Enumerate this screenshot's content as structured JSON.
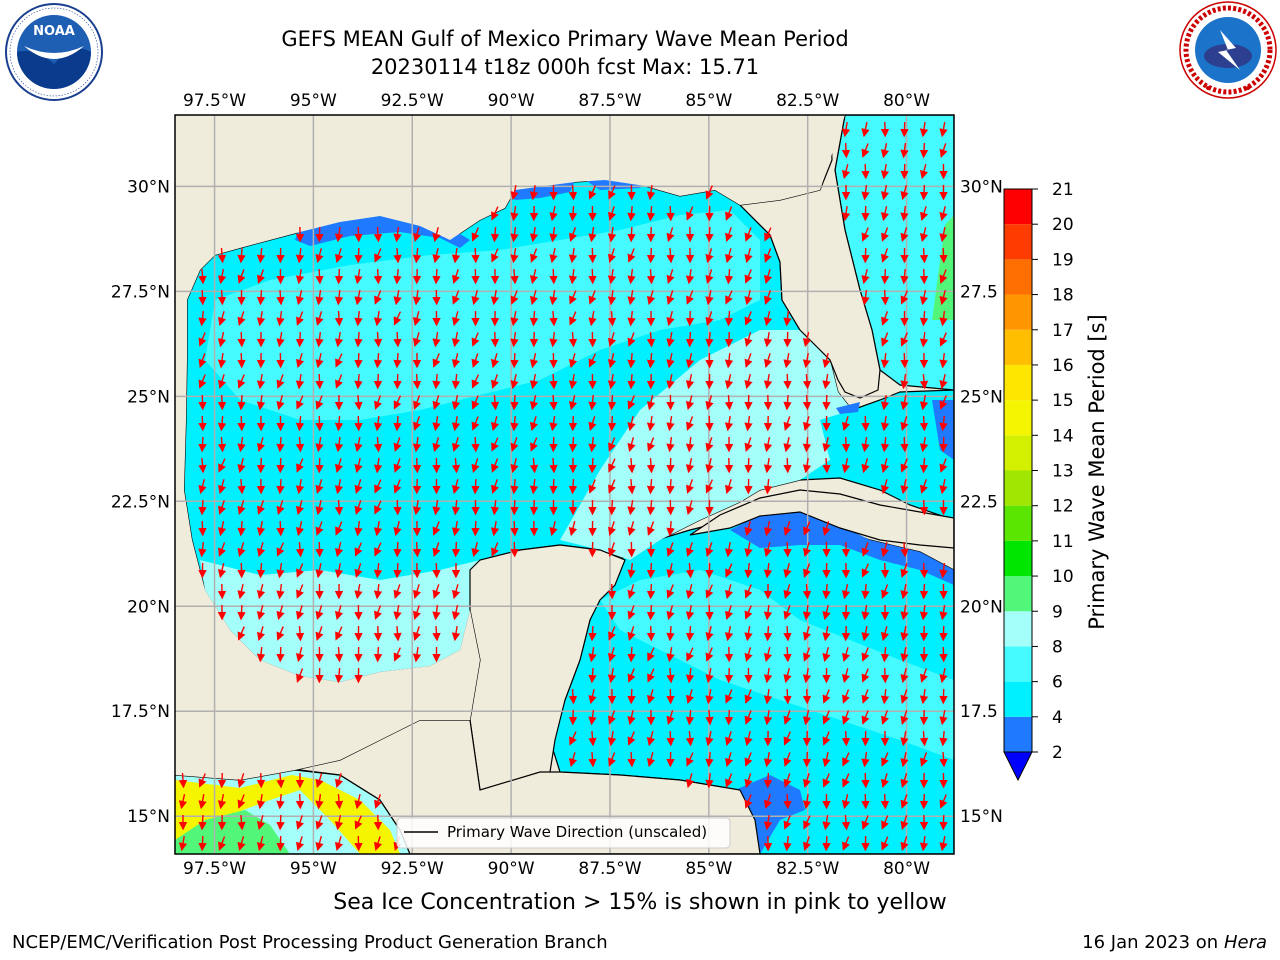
{
  "title": {
    "line1": "GEFS MEAN Gulf of Mexico Primary Wave Mean Period",
    "line2": "20230114 t18z 000h fcst   Max: 15.71"
  },
  "map": {
    "lon_labels": [
      "97.5°W",
      "95°W",
      "92.5°W",
      "90°W",
      "87.5°W",
      "85°W",
      "82.5°W",
      "80°W"
    ],
    "lat_labels_left": [
      "30°N",
      "27.5°N",
      "25°N",
      "22.5°N",
      "20°N",
      "17.5°N",
      "15°N"
    ],
    "lat_labels_right": [
      "30°N",
      "27.5",
      "25°N",
      "22.5",
      "20°N",
      "17.5",
      "15°N"
    ],
    "legend_label": "Primary Wave Direction (unscaled)",
    "arrow_color": "#ff0000",
    "land_color": "#efecdc",
    "coastline_color": "#000000",
    "grid_color": "#b0b0b0"
  },
  "colorbar": {
    "label": "Primary Wave Mean Period [s]",
    "ticks": [
      "2",
      "4",
      "6",
      "8",
      "9",
      "10",
      "11",
      "12",
      "13",
      "14",
      "15",
      "16",
      "17",
      "18",
      "19",
      "20",
      "21"
    ],
    "colors": [
      "#1f7aff",
      "#00f0ff",
      "#46fbff",
      "#a4fffa",
      "#52f77a",
      "#00e600",
      "#5ae600",
      "#a0e600",
      "#d2f000",
      "#f5f500",
      "#ffe600",
      "#ffbe00",
      "#ff9600",
      "#ff6e00",
      "#ff3c00",
      "#ff0000"
    ],
    "under_color": "#0000ff"
  },
  "chart_data": {
    "type": "heatmap",
    "title": "GEFS MEAN Gulf of Mexico Primary Wave Mean Period",
    "subtitle": "20230114 t18z 000h fcst   Max: 15.71",
    "variable": "Primary Wave Mean Period [s]",
    "max_value": 15.71,
    "lon_range": [
      -98.5,
      -78.8
    ],
    "lat_range": [
      14.1,
      31.7
    ],
    "lon_ticks": [
      -97.5,
      -95,
      -92.5,
      -90,
      -87.5,
      -85,
      -82.5,
      -80
    ],
    "lat_ticks": [
      30,
      27.5,
      25,
      22.5,
      20,
      17.5,
      15
    ],
    "color_levels": [
      2,
      4,
      6,
      8,
      9,
      10,
      11,
      12,
      13,
      14,
      15,
      16,
      17,
      18,
      19,
      20,
      21
    ],
    "extend": "min",
    "predominant_direction": "southward (arrows pointing south to south-southwest)"
  },
  "ice_note": "Sea Ice Concentration > 15% is shown in pink to yellow",
  "footer": {
    "left": "NCEP/EMC/Verification Post Processing Product Generation Branch",
    "right_prefix": "16 Jan 2023 on ",
    "right_machine": "Hera"
  },
  "logos": {
    "noaa": "NOAA",
    "nws": "NATIONAL WEATHER SERVICE"
  }
}
